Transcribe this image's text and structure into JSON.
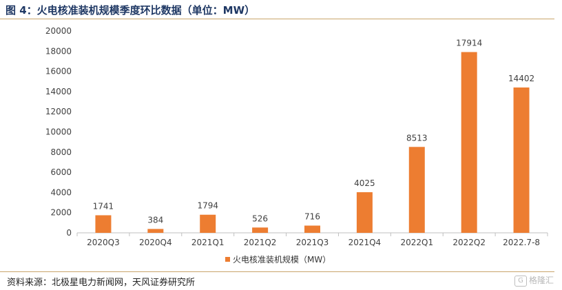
{
  "figure": {
    "title": "图 4：火电核准装机规模季度环比数据（单位：MW）",
    "source": "资料来源：北极星电力新闻网，天风证券研究所",
    "watermark": "格隆汇"
  },
  "chart_data": {
    "type": "bar",
    "categories": [
      "2020Q3",
      "2020Q4",
      "2021Q1",
      "2021Q2",
      "2021Q3",
      "2021Q4",
      "2022Q1",
      "2022Q2",
      "2022.7-8"
    ],
    "series": [
      {
        "name": "火电核准装机规模（MW）",
        "values": [
          1741,
          384,
          1794,
          526,
          716,
          4025,
          8513,
          17914,
          14402
        ],
        "color": "#ed7d31"
      }
    ],
    "ylim": [
      0,
      20000
    ],
    "yticks": [
      0,
      2000,
      4000,
      6000,
      8000,
      10000,
      12000,
      14000,
      16000,
      18000,
      20000
    ],
    "grid": false,
    "legend": "bottom",
    "data_labels": true
  }
}
